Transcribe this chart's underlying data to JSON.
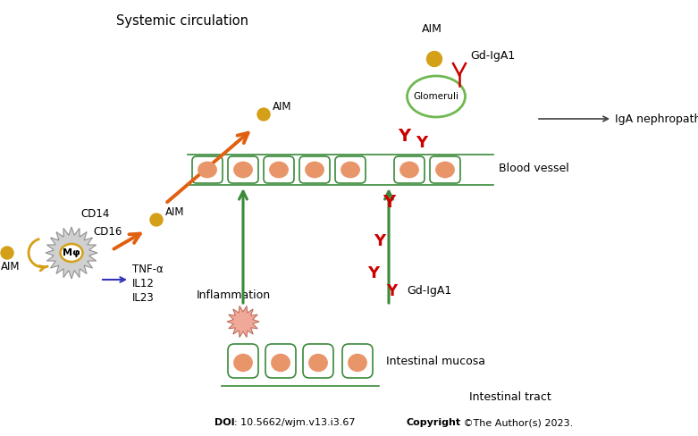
{
  "bg_color": "#ffffff",
  "title_systemic": "Systemic circulation",
  "title_intestinal": "Intestinal tract",
  "label_blood_vessel": "Blood vessel",
  "label_intestinal_mucosa": "Intestinal mucosa",
  "label_inflammation": "Inflammation",
  "label_AIM_mac": "AIM",
  "label_AIM_mid": "AIM",
  "label_AIM_high": "AIM",
  "label_AIM_top": "AIM",
  "label_GdIgA1_top": "Gd-IgA1",
  "label_GdIgA1_bot": "Gd-IgA1",
  "label_glomeruli": "Glomeruli",
  "label_IgA_nephropathy": "IgA nephropathy",
  "label_CD14": "CD14",
  "label_CD16": "CD16",
  "label_Mphi": "Mφ",
  "label_TNF": "TNF-α",
  "label_IL12": "IL12",
  "label_IL23": "IL23",
  "cell_color": "#e8956a",
  "cell_border_color": "#3a8a3a",
  "cell_face_color": "#ffffff",
  "orange_color": "#e06010",
  "green_color": "#3a8a3a",
  "red_color": "#cc0000",
  "gold_color": "#d4a017",
  "blue_color": "#3333bb",
  "macrophage_color": "#d0d0d0",
  "macrophage_border": "#909090",
  "glomeruli_color": "#70b850",
  "inflammation_color": "#f0a898"
}
